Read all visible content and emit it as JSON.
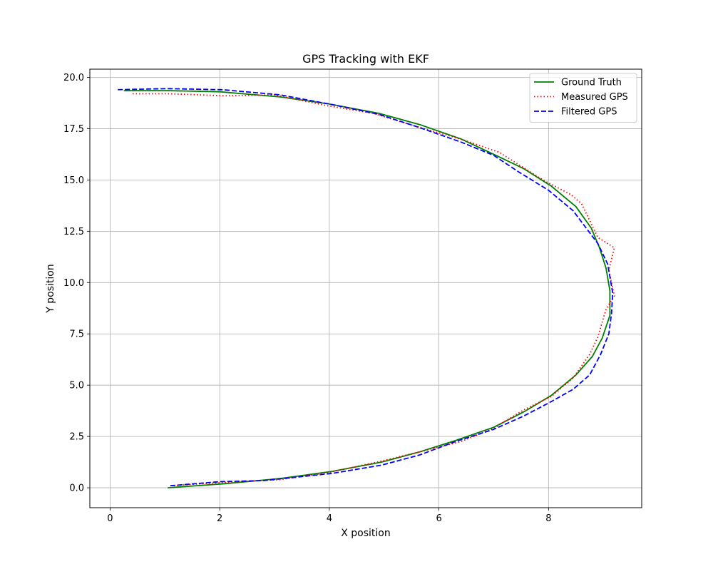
{
  "chart_data": {
    "type": "line",
    "title": "GPS Tracking with EKF",
    "xlabel": "X position",
    "ylabel": "Y position",
    "xlim": [
      -0.37,
      9.7
    ],
    "ylim": [
      -0.97,
      20.4
    ],
    "xticks": [
      0,
      2,
      4,
      6,
      8
    ],
    "xtick_labels": [
      "0",
      "2",
      "4",
      "6",
      "8"
    ],
    "yticks": [
      0.0,
      2.5,
      5.0,
      7.5,
      10.0,
      12.5,
      15.0,
      17.5,
      20.0
    ],
    "ytick_labels": [
      "0.0",
      "2.5",
      "5.0",
      "7.5",
      "10.0",
      "12.5",
      "15.0",
      "17.5",
      "20.0"
    ],
    "grid": true,
    "legend_position": "top-right",
    "series": [
      {
        "name": "Ground Truth",
        "color": "#008000",
        "style": "solid",
        "x": [
          1.05,
          2.1,
          3.1,
          4.05,
          4.95,
          5.65,
          6.3,
          7.0,
          7.55,
          8.05,
          8.5,
          8.8,
          8.98,
          9.12,
          9.12,
          9.05,
          8.93,
          8.78,
          8.5,
          8.05,
          7.55,
          7.0,
          6.4,
          5.65,
          4.9,
          4.0,
          3.1,
          2.0,
          1.1,
          0.25
        ],
        "y": [
          0.0,
          0.2,
          0.45,
          0.8,
          1.25,
          1.75,
          2.3,
          2.95,
          3.7,
          4.5,
          5.5,
          6.4,
          7.3,
          8.4,
          9.6,
          10.7,
          11.7,
          12.65,
          13.7,
          14.7,
          15.55,
          16.25,
          17.0,
          17.7,
          18.25,
          18.7,
          19.05,
          19.3,
          19.35,
          19.35
        ]
      },
      {
        "name": "Measured GPS",
        "color": "#ff0000",
        "style": "dotted",
        "x": [
          1.1,
          2.0,
          3.1,
          4.0,
          4.95,
          5.65,
          6.4,
          7.0,
          7.55,
          8.05,
          8.45,
          8.75,
          8.9,
          9.05,
          9.2,
          9.1,
          9.2,
          8.9,
          8.6,
          8.4,
          7.9,
          7.1,
          6.45,
          5.6,
          4.8,
          4.0,
          3.0,
          2.1,
          1.1,
          0.4
        ],
        "y": [
          0.1,
          0.25,
          0.4,
          0.75,
          1.3,
          1.75,
          2.25,
          2.9,
          3.8,
          4.45,
          5.35,
          6.5,
          7.35,
          8.7,
          9.35,
          10.6,
          11.7,
          12.2,
          13.85,
          14.3,
          15.0,
          16.35,
          16.95,
          17.6,
          18.25,
          18.6,
          19.15,
          19.1,
          19.2,
          19.2
        ]
      },
      {
        "name": "Filtered GPS",
        "color": "#0000ff",
        "style": "dashed",
        "x": [
          1.1,
          2.0,
          2.8,
          4.05,
          4.95,
          5.65,
          6.3,
          7.0,
          7.55,
          8.05,
          8.45,
          8.75,
          8.95,
          9.1,
          9.15,
          9.17,
          9.08,
          8.9,
          8.45,
          8.0,
          7.45,
          7.0,
          6.4,
          5.65,
          4.9,
          4.0,
          3.1,
          2.05,
          1.05,
          0.1
        ],
        "y": [
          0.1,
          0.3,
          0.35,
          0.7,
          1.1,
          1.6,
          2.25,
          2.85,
          3.5,
          4.2,
          4.8,
          5.5,
          6.5,
          7.5,
          8.5,
          9.5,
          10.9,
          11.9,
          13.5,
          14.5,
          15.4,
          16.2,
          16.85,
          17.55,
          18.2,
          18.7,
          19.15,
          19.4,
          19.45,
          19.4
        ]
      }
    ]
  }
}
